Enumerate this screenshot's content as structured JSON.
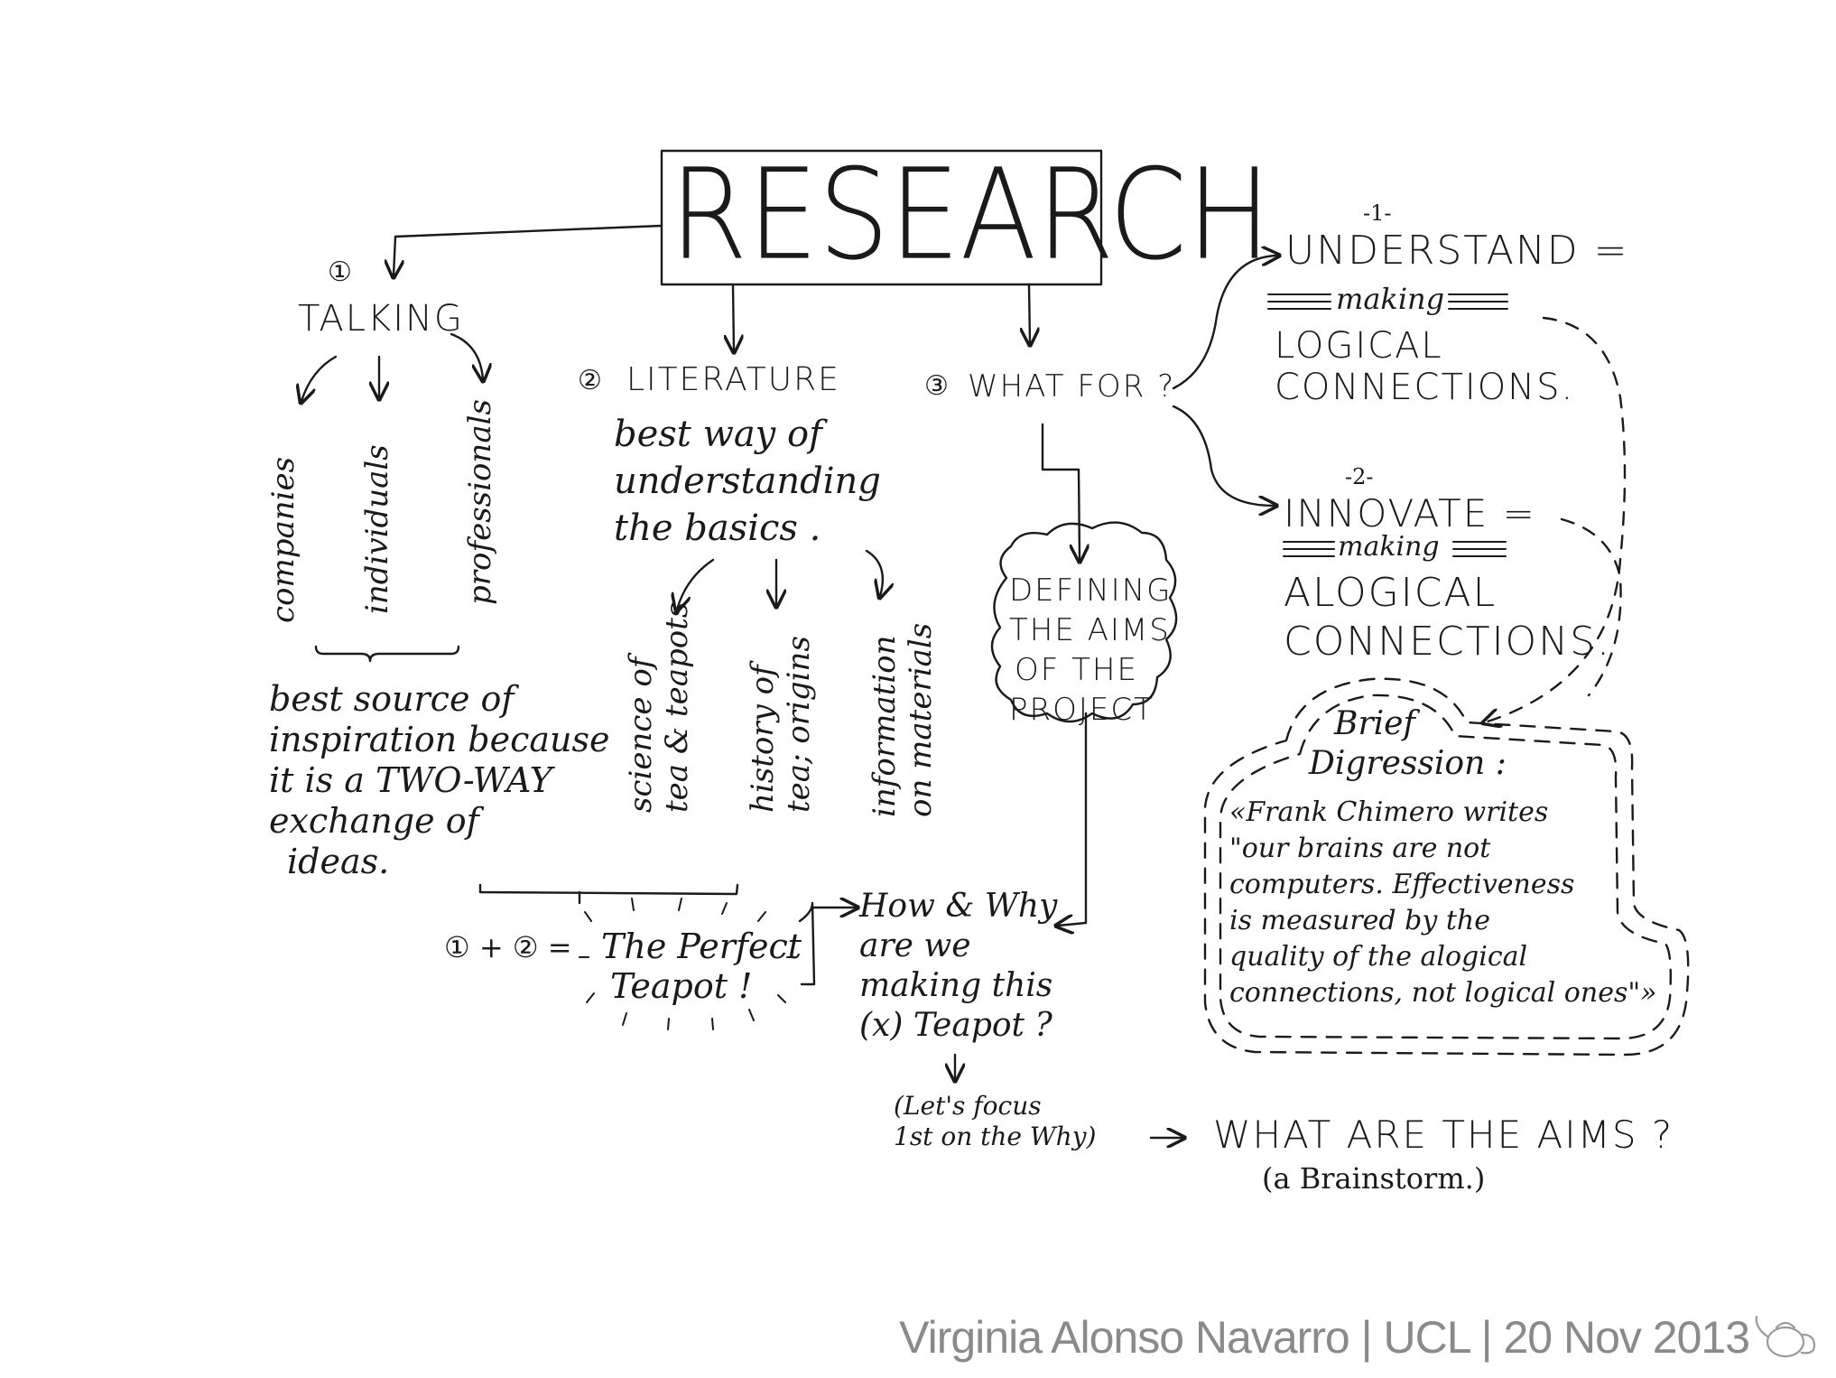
{
  "title": "RESEARCH",
  "talking": {
    "number": "①",
    "label": "TALKING",
    "branches": [
      "companies",
      "individuals",
      "professionals"
    ],
    "conclusion": [
      "best source of",
      "inspiration because",
      "it is a TWO-WAY",
      "exchange of",
      "ideas."
    ]
  },
  "literature": {
    "number": "②",
    "label": "LITERATURE",
    "note": [
      "best way of",
      "understanding",
      "the basics ."
    ],
    "branches": [
      [
        "science of",
        "tea & teapots"
      ],
      [
        "history of",
        "tea; origins"
      ],
      [
        "information",
        "on materials"
      ]
    ]
  },
  "what_for": {
    "number": "③",
    "label": "WHAT FOR ?"
  },
  "aims_cloud": [
    "DEFINING",
    "THE AIMS",
    "OF THE",
    "PROJECT"
  ],
  "understand": {
    "number": "-1-",
    "label": "UNDERSTAND =",
    "making": "making",
    "lines": [
      "LOGICAL",
      "CONNECTIONS."
    ]
  },
  "innovate": {
    "number": "-2-",
    "label": "INNOVATE =",
    "making": "making",
    "lines": [
      "ALOGICAL",
      "CONNECTIONS."
    ]
  },
  "digression": {
    "title": [
      "Brief",
      "Digression :"
    ],
    "quote": [
      "«Frank Chimero writes",
      "\"our brains are not",
      "computers. Effectiveness",
      "is measured by the",
      "quality of the alogical",
      "connections, not logical ones\"»"
    ]
  },
  "perfect_teapot": {
    "formula": "① + ② =",
    "label": [
      "The Perfect",
      "Teapot !"
    ]
  },
  "how_why": [
    "How & Why",
    "are we",
    "making this",
    "(x) Teapot ?"
  ],
  "focus_note": [
    "(Let's focus",
    "1st on the Why)"
  ],
  "aims_question": "WHAT ARE THE AIMS ?",
  "brainstorm": "(a Brainstorm.)",
  "footer": "Virginia Alonso Navarro | UCL | 20 Nov 2013",
  "colors": {
    "ink": "#1a1a1a",
    "footer": "#8a8a8a",
    "background": "#ffffff"
  },
  "icons": [
    "teapot-icon"
  ]
}
